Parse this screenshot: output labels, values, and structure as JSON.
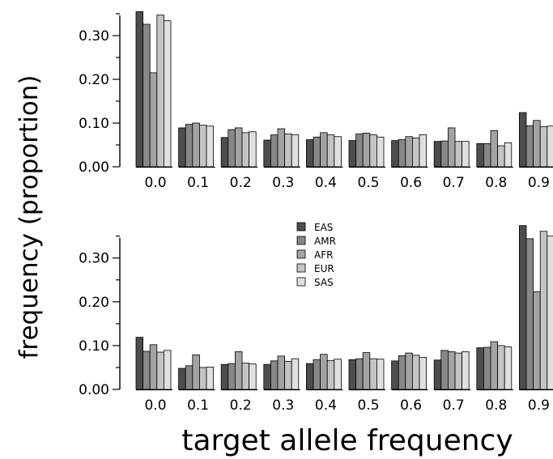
{
  "figure": {
    "ylabel": "frequency (proportion)",
    "xlabel": "target allele frequency"
  },
  "chart_data": [
    {
      "type": "bar",
      "panel": "top",
      "categories": [
        "0.0",
        "0.1",
        "0.2",
        "0.3",
        "0.4",
        "0.5",
        "0.6",
        "0.7",
        "0.8",
        "0.9"
      ],
      "ylim": [
        0,
        0.35
      ],
      "yticks": [
        "0.00",
        "0.10",
        "0.20",
        "0.30"
      ],
      "grid": false,
      "series": [
        {
          "name": "EAS",
          "color": "#4d4d4d",
          "values": [
            0.355,
            0.089,
            0.067,
            0.061,
            0.062,
            0.06,
            0.06,
            0.058,
            0.053,
            0.124
          ]
        },
        {
          "name": "AMR",
          "color": "#878787",
          "values": [
            0.326,
            0.097,
            0.085,
            0.073,
            0.068,
            0.075,
            0.062,
            0.059,
            0.053,
            0.094
          ]
        },
        {
          "name": "AFR",
          "color": "#a3a3a3",
          "values": [
            0.215,
            0.1,
            0.089,
            0.087,
            0.078,
            0.077,
            0.069,
            0.089,
            0.083,
            0.106
          ]
        },
        {
          "name": "EUR",
          "color": "#c4c4c4",
          "values": [
            0.347,
            0.095,
            0.078,
            0.075,
            0.073,
            0.073,
            0.066,
            0.058,
            0.048,
            0.092
          ]
        },
        {
          "name": "SAS",
          "color": "#e0e0e0",
          "values": [
            0.334,
            0.093,
            0.08,
            0.073,
            0.069,
            0.068,
            0.073,
            0.058,
            0.055,
            0.093
          ]
        }
      ]
    },
    {
      "type": "bar",
      "panel": "bottom",
      "categories": [
        "0.0",
        "0.1",
        "0.2",
        "0.3",
        "0.4",
        "0.5",
        "0.6",
        "0.7",
        "0.8",
        "0.9"
      ],
      "ylim": [
        0,
        0.35
      ],
      "yticks": [
        "0.00",
        "0.10",
        "0.20",
        "0.30"
      ],
      "grid": false,
      "legend": {
        "placement": "top-center",
        "entries": [
          "EAS",
          "AMR",
          "AFR",
          "EUR",
          "SAS"
        ]
      },
      "series": [
        {
          "name": "EAS",
          "color": "#4d4d4d",
          "values": [
            0.119,
            0.048,
            0.057,
            0.057,
            0.059,
            0.068,
            0.065,
            0.067,
            0.095,
            0.374
          ]
        },
        {
          "name": "AMR",
          "color": "#878787",
          "values": [
            0.087,
            0.054,
            0.059,
            0.065,
            0.068,
            0.07,
            0.077,
            0.089,
            0.096,
            0.344
          ]
        },
        {
          "name": "AFR",
          "color": "#a3a3a3",
          "values": [
            0.102,
            0.079,
            0.086,
            0.076,
            0.08,
            0.084,
            0.083,
            0.086,
            0.109,
            0.223
          ]
        },
        {
          "name": "EUR",
          "color": "#c4c4c4",
          "values": [
            0.085,
            0.05,
            0.06,
            0.064,
            0.066,
            0.07,
            0.078,
            0.083,
            0.1,
            0.361
          ]
        },
        {
          "name": "SAS",
          "color": "#e0e0e0",
          "values": [
            0.089,
            0.051,
            0.058,
            0.07,
            0.069,
            0.069,
            0.073,
            0.086,
            0.097,
            0.35
          ]
        }
      ]
    }
  ]
}
